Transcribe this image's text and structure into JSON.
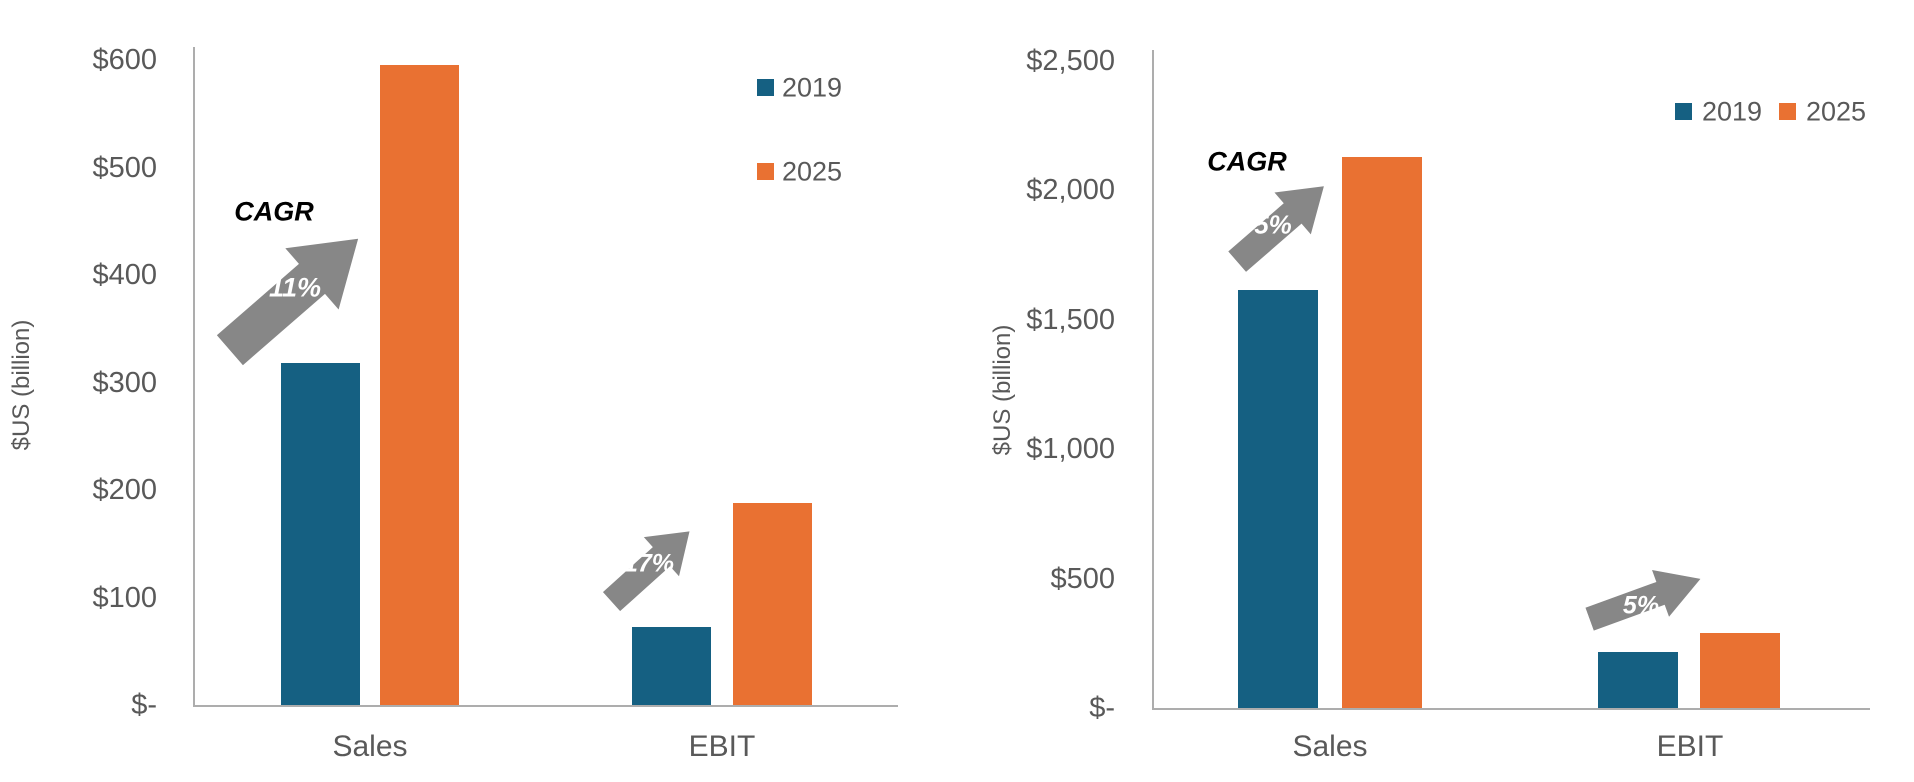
{
  "chart_data": [
    {
      "type": "bar",
      "panel": "left",
      "title": "",
      "xlabel": "",
      "ylabel": "$US (billion)",
      "categories": [
        "Sales",
        "EBIT"
      ],
      "series": [
        {
          "name": "2019",
          "color": "#156082",
          "values": [
            318,
            73
          ]
        },
        {
          "name": "2025",
          "color": "#E97132",
          "values": [
            595,
            188
          ]
        }
      ],
      "y_ticks": [
        "$600",
        "$500",
        "$400",
        "$300",
        "$200",
        "$100",
        "$-"
      ],
      "y_tick_values": [
        600,
        500,
        400,
        300,
        200,
        100,
        0
      ],
      "ylim": [
        0,
        600
      ],
      "grid": false,
      "legend_position": "top-right, stacked vertically",
      "annotations": {
        "cagr_title": "CAGR",
        "arrows": [
          {
            "label": "11%",
            "category": "Sales",
            "direction": "up-right"
          },
          {
            "label": "17%",
            "category": "EBIT",
            "direction": "up-right"
          }
        ]
      }
    },
    {
      "type": "bar",
      "panel": "right",
      "title": "",
      "xlabel": "",
      "ylabel": "$US (billion)",
      "categories": [
        "Sales",
        "EBIT"
      ],
      "series": [
        {
          "name": "2019",
          "color": "#156082",
          "values": [
            1615,
            215
          ]
        },
        {
          "name": "2025",
          "color": "#E97132",
          "values": [
            2130,
            290
          ]
        }
      ],
      "y_ticks": [
        "$2,500",
        "$2,000",
        "$1,500",
        "$1,000",
        "$500",
        "$-"
      ],
      "y_tick_values": [
        2500,
        2000,
        1500,
        1000,
        500,
        0
      ],
      "ylim": [
        0,
        2500
      ],
      "grid": false,
      "legend_position": "top-right, horizontal",
      "annotations": {
        "cagr_title": "CAGR",
        "arrows": [
          {
            "label": "5%",
            "category": "Sales",
            "direction": "up-right"
          },
          {
            "label": "5%",
            "category": "EBIT",
            "direction": "right-up"
          }
        ]
      }
    }
  ]
}
